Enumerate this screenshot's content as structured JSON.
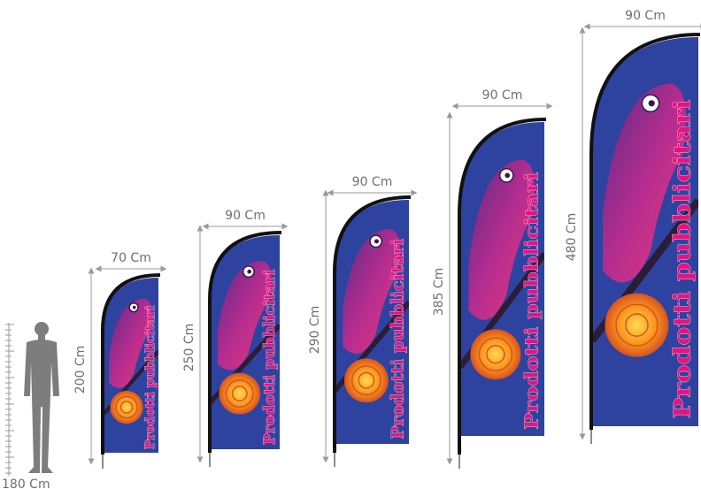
{
  "person": {
    "height_label": "180 Cm"
  },
  "flag_text": "Prodotti pubblicitari",
  "flags": [
    {
      "width_label": "70 Cm",
      "height_label": "200 Cm"
    },
    {
      "width_label": "90 Cm",
      "height_label": "250 Cm"
    },
    {
      "width_label": "90 Cm",
      "height_label": "290 Cm"
    },
    {
      "width_label": "90 Cm",
      "height_label": "385 Cm"
    },
    {
      "width_label": "90 Cm",
      "height_label": "480 Cm"
    }
  ],
  "colors": {
    "flag_background": "#2e43a0",
    "flag_text": "#e8127c",
    "pole": "#111111",
    "dimension_lines": "#9a9a9a",
    "person": "#7d7d7d",
    "snail_shell": "#f7941d",
    "chameleon": "#8a2d8f"
  }
}
